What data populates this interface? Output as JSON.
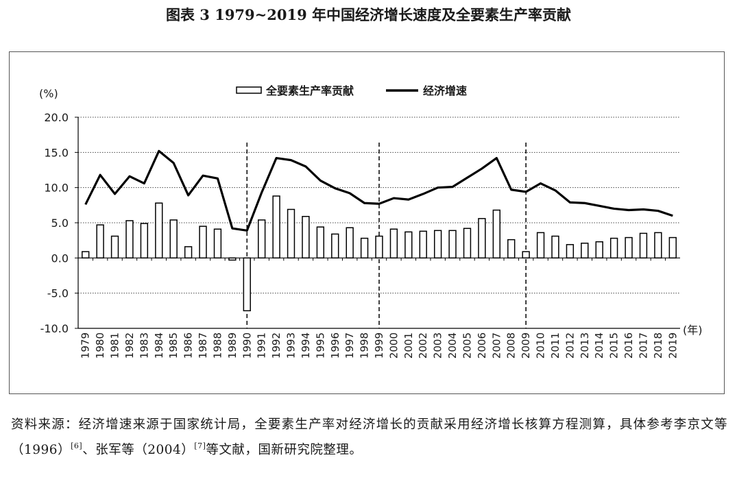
{
  "title": "图表 3  1979~2019 年中国经济增长速度及全要素生产率贡献",
  "chart_data": {
    "type": "bar+line",
    "y_unit": "(%)",
    "x_unit": "(年)",
    "ylim": [
      -10,
      20
    ],
    "yticks": [
      "20.0",
      "15.0",
      "10.0",
      "5.0",
      "0.0",
      "-5.0",
      "-10.0"
    ],
    "grid": "horizontal dotted",
    "legend_position": "top",
    "legend": {
      "bar": "全要素生产率贡献",
      "line": "经济增速"
    },
    "categories": [
      "1979",
      "1980",
      "1981",
      "1982",
      "1983",
      "1984",
      "1985",
      "1986",
      "1987",
      "1988",
      "1989",
      "1990",
      "1991",
      "1992",
      "1993",
      "1994",
      "1995",
      "1996",
      "1997",
      "1998",
      "1999",
      "2000",
      "2001",
      "2002",
      "2003",
      "2004",
      "2005",
      "2006",
      "2007",
      "2008",
      "2009",
      "2010",
      "2011",
      "2012",
      "2013",
      "2014",
      "2015",
      "2016",
      "2017",
      "2018",
      "2019"
    ],
    "vlines": [
      "1990",
      "1999",
      "2009"
    ],
    "series": [
      {
        "name": "全要素生产率贡献",
        "kind": "bar",
        "values": [
          0.9,
          4.7,
          3.1,
          5.3,
          4.9,
          7.8,
          5.4,
          1.6,
          4.5,
          4.1,
          -0.3,
          -7.5,
          5.4,
          8.8,
          6.9,
          5.9,
          4.4,
          3.4,
          4.3,
          2.8,
          3.1,
          4.1,
          3.7,
          3.8,
          3.9,
          3.9,
          4.2,
          5.6,
          6.8,
          2.6,
          0.9,
          3.6,
          3.1,
          1.9,
          2.1,
          2.3,
          2.8,
          2.9,
          3.5,
          3.6,
          2.9
        ]
      },
      {
        "name": "经济增速",
        "kind": "line",
        "values": [
          7.6,
          11.8,
          9.1,
          11.6,
          10.6,
          15.2,
          13.5,
          8.9,
          11.7,
          11.3,
          4.2,
          3.9,
          9.3,
          14.2,
          13.9,
          13.0,
          11.0,
          9.9,
          9.2,
          7.8,
          7.7,
          8.5,
          8.3,
          9.1,
          10.0,
          10.1,
          11.4,
          12.7,
          14.2,
          9.7,
          9.4,
          10.6,
          9.6,
          7.9,
          7.8,
          7.4,
          7.0,
          6.8,
          6.9,
          6.7,
          6.0
        ]
      }
    ]
  },
  "source_note": {
    "lead": "资料来源：经济增速来源于国家统计局，全要素生产率对经济增长的贡献采用经济增长核算方程测算，具体参考李京文等（1996）",
    "ref1": "[6]",
    "mid": "、张军等（2004）",
    "ref2": "[7]",
    "tail": "等文献，国新研究院整理。"
  }
}
